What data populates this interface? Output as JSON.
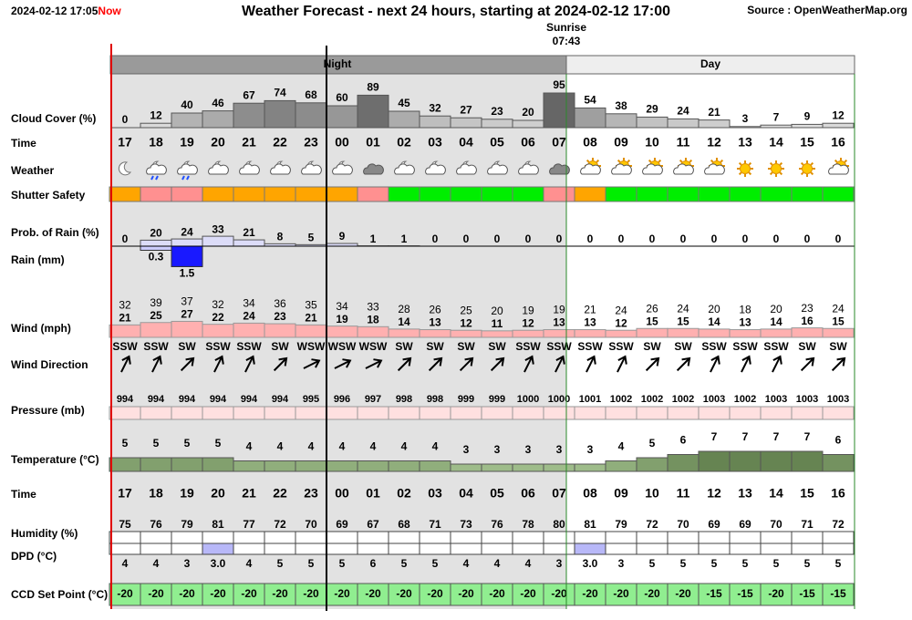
{
  "header": {
    "timestamp": "2024-02-12 17:05",
    "now": "Now",
    "title": "Weather Forecast - next 24 hours, starting at 2024-02-12 17:00",
    "source": "Source : OpenWeatherMap.org"
  },
  "sunrise": {
    "label": "Sunrise",
    "time": "07:43"
  },
  "bands": {
    "night": "Night",
    "day": "Day"
  },
  "row_labels": {
    "cloud": "Cloud Cover (%)",
    "time": "Time",
    "weather": "Weather",
    "shutter": "Shutter Safety",
    "rain_prob": "Prob. of Rain (%)",
    "rain": "Rain (mm)",
    "wind": "Wind (mph)",
    "wind_dir": "Wind Direction",
    "pressure": "Pressure (mb)",
    "temperature": "Temperature (°C)",
    "time2": "Time",
    "humidity": "Humidity (%)",
    "dpd": "DPD (°C)",
    "ccd": "CCD Set Point (°C)"
  },
  "hours": [
    "17",
    "18",
    "19",
    "20",
    "21",
    "22",
    "23",
    "00",
    "01",
    "02",
    "03",
    "04",
    "05",
    "06",
    "07",
    "08",
    "09",
    "10",
    "11",
    "12",
    "13",
    "14",
    "15",
    "16"
  ],
  "cloud_cover": [
    0,
    12,
    40,
    46,
    67,
    74,
    68,
    60,
    89,
    45,
    32,
    27,
    23,
    20,
    95,
    54,
    38,
    29,
    24,
    21,
    3,
    7,
    9,
    12
  ],
  "shutter_safety": {
    "colors": [
      "#ffa500",
      "#ff9090",
      "#ff9090",
      "#ffa500",
      "#ffa500",
      "#ffa500",
      "#ffa500",
      "#ffa500",
      "#ff9090",
      "#00ee00",
      "#00ee00",
      "#00ee00",
      "#00ee00",
      "#00ee00",
      "#ff9090",
      "#ffa500",
      "#00ee00",
      "#00ee00",
      "#00ee00",
      "#00ee00",
      "#00ee00",
      "#00ee00",
      "#00ee00",
      "#00ee00"
    ]
  },
  "rain_probability": [
    0,
    20,
    24,
    33,
    21,
    8,
    5,
    9,
    1,
    1,
    0,
    0,
    0,
    0,
    0,
    0,
    0,
    0,
    0,
    0,
    0,
    0,
    0,
    0
  ],
  "rain_mm": [
    null,
    0.3,
    1.5,
    null,
    null,
    null,
    null,
    null,
    null,
    null,
    null,
    null,
    null,
    null,
    null,
    null,
    null,
    null,
    null,
    null,
    null,
    null,
    null,
    null
  ],
  "wind_gust": [
    32,
    39,
    37,
    32,
    34,
    36,
    35,
    34,
    33,
    28,
    26,
    25,
    20,
    19,
    19,
    21,
    24,
    26,
    24,
    20,
    18,
    20,
    23,
    24
  ],
  "wind_speed": [
    21,
    25,
    27,
    22,
    24,
    23,
    21,
    19,
    18,
    14,
    13,
    12,
    11,
    12,
    13,
    13,
    12,
    15,
    15,
    14,
    13,
    14,
    16,
    15
  ],
  "wind_direction": [
    "SSW",
    "SSW",
    "SW",
    "SSW",
    "SSW",
    "SW",
    "WSW",
    "WSW",
    "WSW",
    "SW",
    "SW",
    "SW",
    "SW",
    "SSW",
    "SSW",
    "SSW",
    "SSW",
    "SW",
    "SW",
    "SSW",
    "SSW",
    "SSW",
    "SW",
    "SW"
  ],
  "pressure": [
    994,
    994,
    994,
    994,
    994,
    994,
    995,
    996,
    997,
    998,
    998,
    999,
    999,
    1000,
    1000,
    1001,
    1002,
    1002,
    1002,
    1003,
    1002,
    1003,
    1003,
    1003
  ],
  "temperature": [
    5,
    5,
    5,
    5,
    4,
    4,
    4,
    4,
    4,
    4,
    4,
    3,
    3,
    3,
    3,
    3,
    4,
    5,
    6,
    7,
    7,
    7,
    7,
    6
  ],
  "humidity": [
    75,
    76,
    79,
    81,
    77,
    72,
    70,
    69,
    67,
    68,
    71,
    73,
    76,
    78,
    80,
    81,
    79,
    72,
    70,
    69,
    69,
    70,
    71,
    72
  ],
  "dpd": {
    "values": [
      4,
      4,
      3,
      3,
      4,
      5,
      5,
      5,
      6,
      5,
      5,
      4,
      4,
      4,
      3,
      3,
      3,
      5,
      5,
      5,
      5,
      5,
      5,
      5
    ],
    "value_labels": [
      null,
      null,
      null,
      "3.0",
      null,
      null,
      null,
      null,
      null,
      null,
      null,
      null,
      null,
      null,
      null,
      "3.0",
      null,
      null,
      null,
      null,
      null,
      null,
      null,
      null
    ],
    "colors": [
      "#ffffff",
      "#ffffff",
      "#ffffff",
      "#b8b8f8",
      "#ffffff",
      "#ffffff",
      "#ffffff",
      "#ffffff",
      "#ffffff",
      "#ffffff",
      "#ffffff",
      "#ffffff",
      "#ffffff",
      "#ffffff",
      "#ffffff",
      "#b8b8f8",
      "#ffffff",
      "#ffffff",
      "#ffffff",
      "#ffffff",
      "#ffffff",
      "#ffffff",
      "#ffffff",
      "#ffffff"
    ]
  },
  "ccd_set_point": [
    -20,
    -20,
    -20,
    -20,
    -20,
    -20,
    -20,
    -20,
    -20,
    -20,
    -20,
    -20,
    -20,
    -20,
    -20,
    -20,
    -20,
    -20,
    -20,
    -15,
    -15,
    -20,
    -15,
    -15
  ]
}
